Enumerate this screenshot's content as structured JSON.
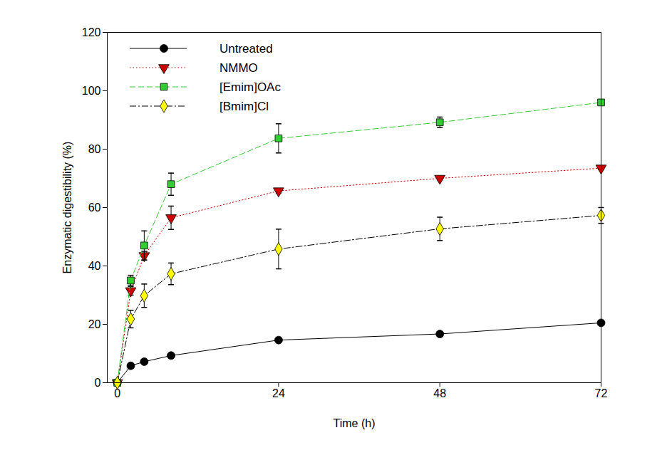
{
  "chart_data": {
    "type": "line",
    "x_label": "Time (h)",
    "y_label": "Enzymatic digestibility (%)",
    "x": [
      0,
      2,
      4,
      8,
      24,
      48,
      72
    ],
    "xlim": [
      -1.5,
      72
    ],
    "xticks": [
      0,
      24,
      48,
      72
    ],
    "ylim": [
      0,
      120
    ],
    "yticks": [
      0,
      20,
      40,
      60,
      80,
      100,
      120
    ],
    "grid": false,
    "legend": "upper left",
    "series": [
      {
        "name": "Untreated",
        "color": "#000000",
        "marker": "circle",
        "line_style": "solid",
        "values": [
          0,
          5.8,
          7.2,
          9.3,
          14.6,
          16.7,
          20.5
        ],
        "errors": [
          0,
          0.4,
          0.4,
          0.5,
          0.5,
          0.6,
          0.6
        ]
      },
      {
        "name": "NMMO",
        "color": "#cc0000",
        "marker": "triangle-down",
        "line_style": "dotted",
        "values": [
          0,
          31.5,
          43.5,
          56.5,
          65.7,
          70,
          73.5
        ],
        "errors": [
          0,
          1.5,
          1.5,
          4,
          0.7,
          0.5,
          0.5
        ]
      },
      {
        "name": "[Emim]OAc",
        "color": "#33cc33",
        "marker": "square",
        "line_style": "dashed",
        "values": [
          0,
          35,
          47,
          68,
          83.7,
          89.2,
          96
        ],
        "errors": [
          0,
          1.8,
          5,
          3.8,
          5,
          1.8,
          0.8
        ]
      },
      {
        "name": "[Bmim]Cl",
        "color": "#ffff00",
        "marker": "diamond",
        "line_style": "dashdot",
        "values": [
          0,
          21.8,
          29.8,
          37.3,
          45.8,
          52.7,
          57.3
        ],
        "errors": [
          0,
          3,
          4,
          3.7,
          6.8,
          4,
          2.7
        ]
      }
    ]
  }
}
